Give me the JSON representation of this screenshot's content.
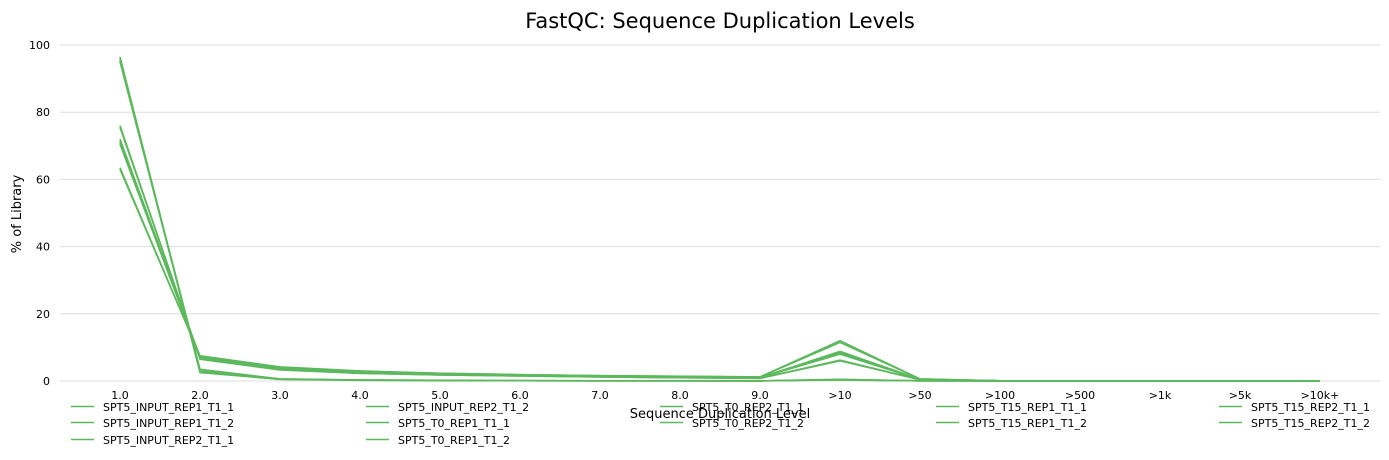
{
  "chart_data": {
    "type": "line",
    "title": "FastQC: Sequence Duplication Levels",
    "xlabel": "Sequence Duplication Level",
    "ylabel": "% of Library",
    "ylim": [
      0,
      100
    ],
    "yticks": [
      0,
      20,
      40,
      60,
      80,
      100
    ],
    "categories": [
      "1.0",
      "2.0",
      "3.0",
      "4.0",
      "5.0",
      "6.0",
      "7.0",
      "8.0",
      "9.0",
      ">10",
      ">50",
      ">100",
      ">500",
      ">1k",
      ">5k",
      ">10k+"
    ],
    "grid": "horizontal",
    "legend_position": "bottom",
    "line_color": "#5cb85c",
    "series": [
      {
        "name": "SPT5_INPUT_REP1_T1_1",
        "values": [
          96.5,
          2.5,
          0.5,
          0.2,
          0.1,
          0.1,
          0.05,
          0.05,
          0.03,
          0.3,
          0.05,
          0,
          0,
          0,
          0,
          0
        ]
      },
      {
        "name": "SPT5_INPUT_REP1_T1_2",
        "values": [
          95.5,
          3.5,
          0.6,
          0.3,
          0.2,
          0.1,
          0.05,
          0.05,
          0.03,
          0.4,
          0.05,
          0,
          0,
          0,
          0,
          0
        ]
      },
      {
        "name": "SPT5_INPUT_REP2_T1_1",
        "values": [
          95.0,
          3.0,
          0.6,
          0.3,
          0.2,
          0.1,
          0.05,
          0.05,
          0.03,
          0.5,
          0.05,
          0,
          0,
          0,
          0,
          0
        ]
      },
      {
        "name": "SPT5_INPUT_REP2_T1_2",
        "values": [
          96.0,
          2.8,
          0.5,
          0.3,
          0.15,
          0.1,
          0.05,
          0.05,
          0.03,
          0.4,
          0.05,
          0,
          0,
          0,
          0,
          0
        ]
      },
      {
        "name": "SPT5_T0_REP1_T1_1",
        "values": [
          72.0,
          7.0,
          3.8,
          2.5,
          2.0,
          1.6,
          1.3,
          1.1,
          1.0,
          8.5,
          0.5,
          0.05,
          0,
          0,
          0,
          0
        ]
      },
      {
        "name": "SPT5_T0_REP1_T1_2",
        "values": [
          71.5,
          7.2,
          3.9,
          2.6,
          2.0,
          1.7,
          1.4,
          1.2,
          1.0,
          8.8,
          0.5,
          0.05,
          0,
          0,
          0,
          0
        ]
      },
      {
        "name": "SPT5_T0_REP2_T1_1",
        "values": [
          76.0,
          6.5,
          3.3,
          2.3,
          1.8,
          1.5,
          1.2,
          1.0,
          0.8,
          6.0,
          0.4,
          0.05,
          0,
          0,
          0,
          0
        ]
      },
      {
        "name": "SPT5_T0_REP2_T1_2",
        "values": [
          75.5,
          6.6,
          3.4,
          2.3,
          1.8,
          1.5,
          1.2,
          1.0,
          0.8,
          6.2,
          0.4,
          0.05,
          0,
          0,
          0,
          0
        ]
      },
      {
        "name": "SPT5_T15_REP1_T1_1",
        "values": [
          63.0,
          7.5,
          4.2,
          3.0,
          2.3,
          1.9,
          1.6,
          1.4,
          1.2,
          12.0,
          0.6,
          0.05,
          0,
          0,
          0,
          0
        ]
      },
      {
        "name": "SPT5_T15_REP1_T1_2",
        "values": [
          63.5,
          7.4,
          4.1,
          2.9,
          2.3,
          1.9,
          1.6,
          1.4,
          1.2,
          11.5,
          0.6,
          0.05,
          0,
          0,
          0,
          0
        ]
      },
      {
        "name": "SPT5_T15_REP2_T1_1",
        "values": [
          71.0,
          6.8,
          3.6,
          2.6,
          2.0,
          1.7,
          1.4,
          1.2,
          1.0,
          8.0,
          0.5,
          0.05,
          0,
          0,
          0,
          0
        ]
      },
      {
        "name": "SPT5_T15_REP2_T1_2",
        "values": [
          70.5,
          6.9,
          3.7,
          2.6,
          2.0,
          1.7,
          1.4,
          1.2,
          1.0,
          8.2,
          0.5,
          0.05,
          0,
          0,
          0,
          0
        ]
      }
    ]
  }
}
